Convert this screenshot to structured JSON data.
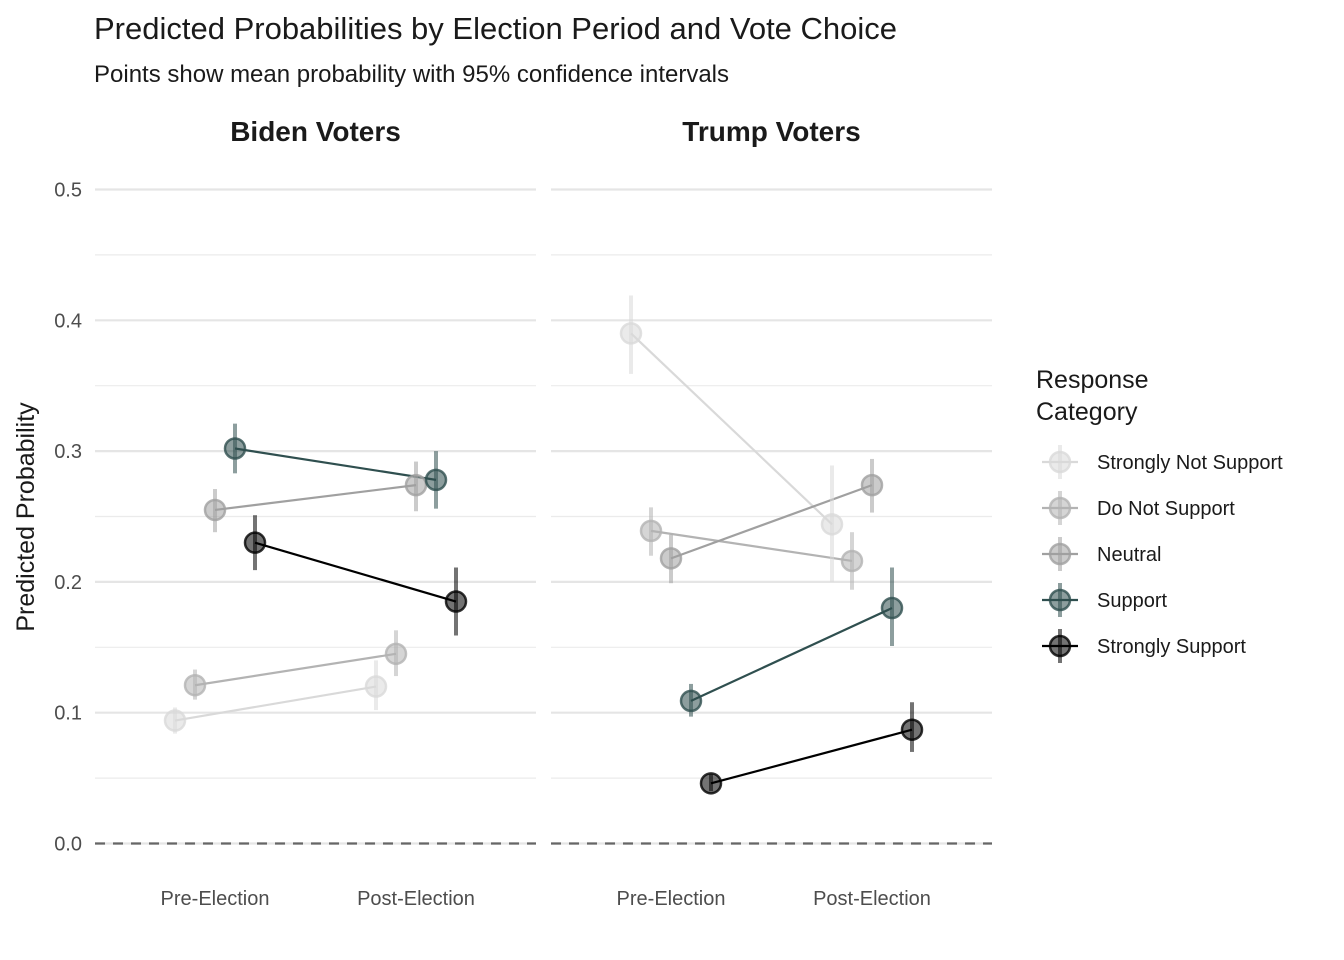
{
  "chart_data": {
    "type": "line",
    "title": "Predicted Probabilities by Election Period and Vote Choice",
    "subtitle": "Points show mean probability with 95% confidence intervals",
    "ylabel": "Predicted Probability",
    "xlabel": "",
    "ylim": [
      0,
      0.5
    ],
    "yticks": [
      0.0,
      0.1,
      0.2,
      0.3,
      0.4,
      0.5
    ],
    "ytick_labels": [
      "0.0",
      "0.1",
      "0.2",
      "0.3",
      "0.4",
      "0.5"
    ],
    "categories": [
      "Pre-Election",
      "Post-Election"
    ],
    "grid": true,
    "reference_line": 0,
    "legend": {
      "title_lines": [
        "Response",
        "Category"
      ],
      "placement": "right",
      "entries": [
        {
          "name": "Strongly Not Support",
          "color": "#d9d9d9"
        },
        {
          "name": "Do Not Support",
          "color": "#b3b3b3"
        },
        {
          "name": "Neutral",
          "color": "#a0a0a0"
        },
        {
          "name": "Support",
          "color": "#2f4f4f"
        },
        {
          "name": "Strongly Support",
          "color": "#000000"
        }
      ]
    },
    "panels": [
      {
        "title": "Biden Voters",
        "series": [
          {
            "name": "Strongly Not Support",
            "values": [
              0.094,
              0.12
            ],
            "lower": [
              0.084,
              0.102
            ],
            "upper": [
              0.104,
              0.14
            ]
          },
          {
            "name": "Do Not Support",
            "values": [
              0.121,
              0.145
            ],
            "lower": [
              0.11,
              0.128
            ],
            "upper": [
              0.133,
              0.163
            ]
          },
          {
            "name": "Neutral",
            "values": [
              0.255,
              0.274
            ],
            "lower": [
              0.238,
              0.254
            ],
            "upper": [
              0.271,
              0.292
            ]
          },
          {
            "name": "Support",
            "values": [
              0.302,
              0.278
            ],
            "lower": [
              0.283,
              0.256
            ],
            "upper": [
              0.321,
              0.3
            ]
          },
          {
            "name": "Strongly Support",
            "values": [
              0.23,
              0.185
            ],
            "lower": [
              0.209,
              0.159
            ],
            "upper": [
              0.251,
              0.211
            ]
          }
        ]
      },
      {
        "title": "Trump Voters",
        "series": [
          {
            "name": "Strongly Not Support",
            "values": [
              0.39,
              0.244
            ],
            "lower": [
              0.359,
              0.2
            ],
            "upper": [
              0.419,
              0.289
            ]
          },
          {
            "name": "Do Not Support",
            "values": [
              0.239,
              0.216
            ],
            "lower": [
              0.22,
              0.194
            ],
            "upper": [
              0.257,
              0.238
            ]
          },
          {
            "name": "Neutral",
            "values": [
              0.218,
              0.274
            ],
            "lower": [
              0.199,
              0.253
            ],
            "upper": [
              0.236,
              0.294
            ]
          },
          {
            "name": "Support",
            "values": [
              0.109,
              0.18
            ],
            "lower": [
              0.097,
              0.151
            ],
            "upper": [
              0.122,
              0.211
            ]
          },
          {
            "name": "Strongly Support",
            "values": [
              0.046,
              0.087
            ],
            "lower": [
              0.04,
              0.07
            ],
            "upper": [
              0.053,
              0.108
            ]
          }
        ]
      }
    ]
  }
}
